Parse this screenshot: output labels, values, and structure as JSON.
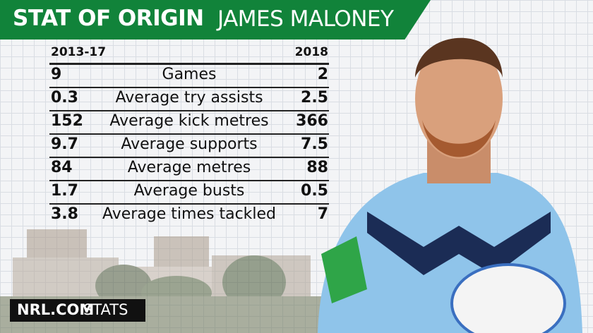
{
  "header": {
    "title": "STAT OF ORIGIN",
    "name": "JAMES MALONEY"
  },
  "table": {
    "columns": [
      "2013-17",
      "2018"
    ],
    "rows": [
      [
        9,
        "Games",
        2
      ],
      [
        0.3,
        "Average try assists",
        2.5
      ],
      [
        152,
        "Average kick metres",
        366
      ],
      [
        9.7,
        "Average supports",
        7.5
      ],
      [
        84,
        "Average metres",
        88
      ],
      [
        1.7,
        "Average busts",
        0.5
      ],
      [
        3.8,
        "Average times tackled",
        7
      ]
    ]
  },
  "footer": {
    "brand": "NRL.COM",
    "label": "STATS"
  }
}
